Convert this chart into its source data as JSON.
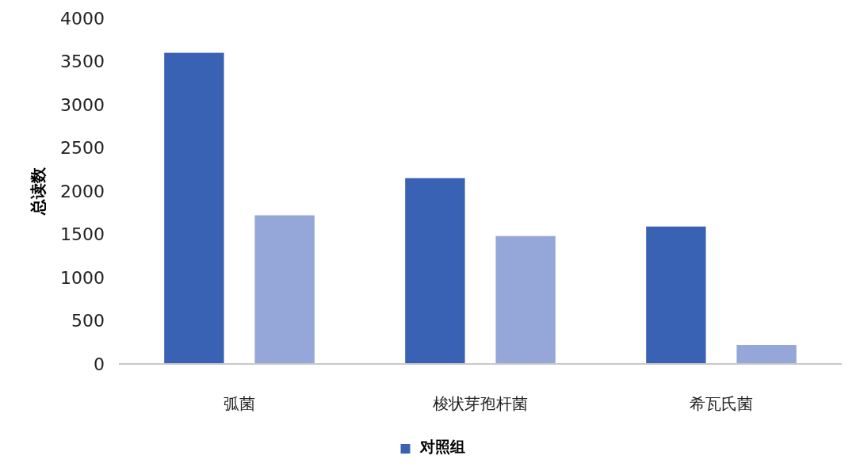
{
  "chart_data": {
    "type": "bar",
    "ylabel": "总读数",
    "categories": [
      "弧菌",
      "梭状芽孢杆菌",
      "希瓦氏菌"
    ],
    "series": [
      {
        "name": "对照组",
        "color": "#3a62b4",
        "values": [
          3600,
          2150,
          1590
        ]
      },
      {
        "color": "#94a7d8",
        "values": [
          1720,
          1480,
          220
        ]
      }
    ],
    "ylim": [
      0,
      4000
    ],
    "yticks": [
      0,
      500,
      1000,
      1500,
      2000,
      2500,
      3000,
      3500,
      4000
    ],
    "grid": false,
    "legend": "bottom"
  }
}
